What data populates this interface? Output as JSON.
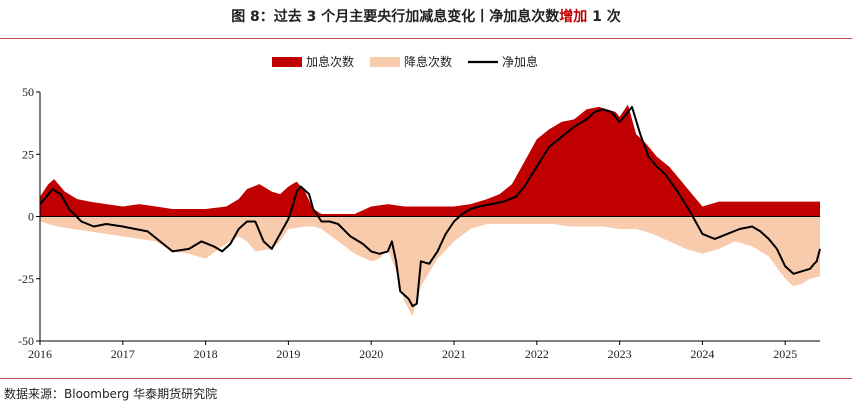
{
  "header": {
    "title_main": "图 8：过去 3 个月主要央行加减息变化丨净加息次数",
    "title_accent": "增加",
    "title_tail": " 1 次"
  },
  "footer": {
    "source": "数据来源：Bloomberg  华泰期货研究院"
  },
  "colors": {
    "hike": "#c00000",
    "cut": "#f8cbad",
    "net": "#000000",
    "axis": "#000000",
    "rule": "#c0504d"
  },
  "chart_data": {
    "type": "area",
    "title": "过去3个月主要央行加减息变化",
    "xlabel": "",
    "ylabel": "",
    "ylim": [
      -50,
      50
    ],
    "yticks": [
      "50",
      "25",
      "0",
      "-25",
      "-50"
    ],
    "ytick_values": [
      50,
      25,
      0,
      -25,
      -50
    ],
    "xlim": [
      2016.0,
      2025.42
    ],
    "xticks": [
      "2016",
      "2017",
      "2018",
      "2019",
      "2020",
      "2021",
      "2022",
      "2023",
      "2024",
      "2025"
    ],
    "xtick_values": [
      2016,
      2017,
      2018,
      2019,
      2020,
      2021,
      2022,
      2023,
      2024,
      2025
    ],
    "legend": [
      "加息次数",
      "降息次数",
      "净加息"
    ],
    "legend_position": "top",
    "series": [
      {
        "name": "加息次数",
        "kind": "area-positive",
        "x": [
          2016.0,
          2016.1,
          2016.17,
          2016.3,
          2016.45,
          2016.6,
          2016.8,
          2017.0,
          2017.2,
          2017.4,
          2017.6,
          2017.8,
          2018.0,
          2018.25,
          2018.4,
          2018.5,
          2018.65,
          2018.8,
          2018.9,
          2019.0,
          2019.1,
          2019.2,
          2019.3,
          2019.4,
          2019.6,
          2019.8,
          2020.0,
          2020.2,
          2020.4,
          2020.6,
          2020.8,
          2021.0,
          2021.2,
          2021.4,
          2021.55,
          2021.7,
          2021.85,
          2022.0,
          2022.15,
          2022.3,
          2022.45,
          2022.6,
          2022.75,
          2022.85,
          2022.95,
          2023.0,
          2023.1,
          2023.2,
          2023.3,
          2023.45,
          2023.6,
          2023.75,
          2023.9,
          2024.0,
          2024.2,
          2024.4,
          2024.6,
          2024.8,
          2025.0,
          2025.2,
          2025.42
        ],
        "values": [
          8,
          13,
          15,
          10,
          7,
          6,
          5,
          4,
          5,
          4,
          3,
          3,
          3,
          4,
          7,
          11,
          13,
          10,
          9,
          12,
          14,
          10,
          3,
          1,
          1,
          1,
          4,
          5,
          4,
          4,
          4,
          4,
          5,
          7,
          9,
          13,
          22,
          31,
          35,
          38,
          39,
          43,
          44,
          43,
          42,
          40,
          45,
          33,
          30,
          24,
          20,
          14,
          8,
          4,
          6,
          6,
          6,
          6,
          6,
          6,
          6
        ]
      },
      {
        "name": "降息次数",
        "kind": "area-negative",
        "x": [
          2016.0,
          2016.2,
          2016.4,
          2016.6,
          2016.8,
          2017.0,
          2017.2,
          2017.4,
          2017.6,
          2017.8,
          2018.0,
          2018.2,
          2018.4,
          2018.5,
          2018.6,
          2018.8,
          2018.9,
          2019.0,
          2019.2,
          2019.3,
          2019.4,
          2019.6,
          2019.8,
          2020.0,
          2020.1,
          2020.2,
          2020.3,
          2020.4,
          2020.5,
          2020.6,
          2020.8,
          2021.0,
          2021.2,
          2021.4,
          2021.6,
          2021.8,
          2022.0,
          2022.2,
          2022.4,
          2022.6,
          2022.8,
          2023.0,
          2023.2,
          2023.4,
          2023.6,
          2023.8,
          2024.0,
          2024.2,
          2024.4,
          2024.6,
          2024.8,
          2025.0,
          2025.1,
          2025.2,
          2025.3,
          2025.42
        ],
        "values": [
          -2,
          -4,
          -5,
          -6,
          -7,
          -8,
          -9,
          -10,
          -14,
          -15,
          -17,
          -12,
          -8,
          -10,
          -14,
          -13,
          -10,
          -5,
          -4,
          -4,
          -5,
          -10,
          -15,
          -18,
          -17,
          -13,
          -22,
          -34,
          -40,
          -28,
          -17,
          -10,
          -5,
          -3,
          -3,
          -3,
          -3,
          -3,
          -4,
          -4,
          -4,
          -5,
          -5,
          -7,
          -10,
          -13,
          -15,
          -13,
          -10,
          -12,
          -16,
          -25,
          -28,
          -27,
          -25,
          -24
        ]
      },
      {
        "name": "净加息",
        "kind": "line",
        "x": [
          2016.0,
          2016.08,
          2016.15,
          2016.25,
          2016.35,
          2016.5,
          2016.65,
          2016.8,
          2017.0,
          2017.15,
          2017.3,
          2017.45,
          2017.6,
          2017.8,
          2017.95,
          2018.1,
          2018.2,
          2018.3,
          2018.4,
          2018.5,
          2018.6,
          2018.7,
          2018.8,
          2018.9,
          2019.0,
          2019.05,
          2019.1,
          2019.15,
          2019.25,
          2019.3,
          2019.4,
          2019.5,
          2019.6,
          2019.75,
          2019.9,
          2020.0,
          2020.1,
          2020.2,
          2020.25,
          2020.3,
          2020.35,
          2020.45,
          2020.5,
          2020.55,
          2020.6,
          2020.7,
          2020.8,
          2020.9,
          2021.0,
          2021.1,
          2021.2,
          2021.3,
          2021.45,
          2021.6,
          2021.75,
          2021.85,
          2022.0,
          2022.15,
          2022.3,
          2022.45,
          2022.6,
          2022.7,
          2022.8,
          2022.9,
          2023.0,
          2023.08,
          2023.15,
          2023.25,
          2023.35,
          2023.45,
          2023.55,
          2023.7,
          2023.85,
          2024.0,
          2024.15,
          2024.3,
          2024.45,
          2024.6,
          2024.7,
          2024.8,
          2024.9,
          2025.0,
          2025.1,
          2025.2,
          2025.3,
          2025.35,
          2025.38,
          2025.42
        ],
        "values": [
          5,
          8,
          11,
          9,
          3,
          -2,
          -4,
          -3,
          -4,
          -5,
          -6,
          -10,
          -14,
          -13,
          -10,
          -12,
          -14,
          -11,
          -5,
          -2,
          -2,
          -10,
          -13,
          -7,
          -1,
          4,
          10,
          12,
          9,
          3,
          -2,
          -2,
          -3,
          -8,
          -11,
          -14,
          -15,
          -14,
          -10,
          -18,
          -30,
          -33,
          -36,
          -35,
          -18,
          -19,
          -14,
          -7,
          -2,
          1,
          3,
          4,
          5,
          6,
          8,
          12,
          20,
          28,
          32,
          36,
          39,
          42,
          43,
          42,
          38,
          41,
          44,
          33,
          24,
          20,
          17,
          10,
          2,
          -7,
          -9,
          -7,
          -5,
          -4,
          -6,
          -9,
          -13,
          -20,
          -23,
          -22,
          -21,
          -19,
          -18,
          -13
        ]
      }
    ]
  }
}
